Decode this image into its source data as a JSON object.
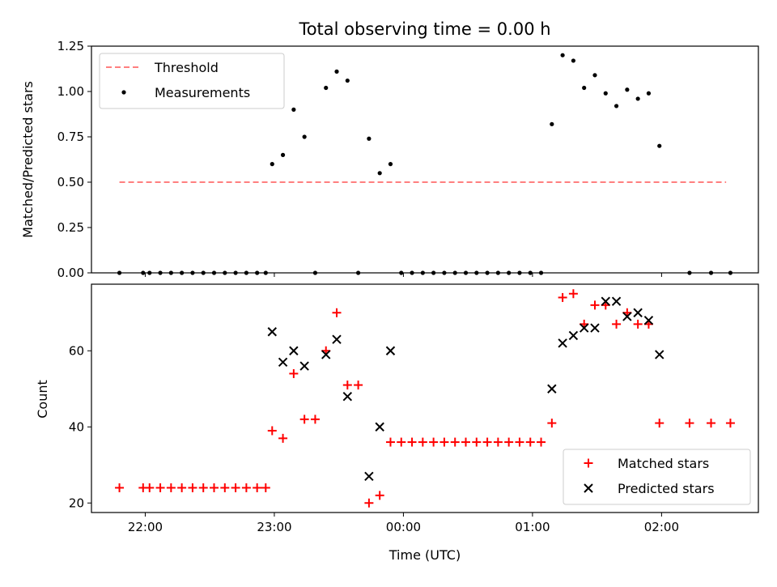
{
  "chart_data": [
    {
      "type": "scatter",
      "title": "Total observing time = 0.00 h",
      "ylabel": "Matched/Predicted stars",
      "xlabel": "",
      "ylim": [
        0,
        1.25
      ],
      "yticks": [
        "0.00",
        "0.25",
        "0.50",
        "0.75",
        "1.00",
        "1.25"
      ],
      "grid": false,
      "legend": "top-left",
      "threshold": {
        "name": "Threshold",
        "value": 0.5,
        "x_start": "21:48",
        "x_end": "02:30",
        "color": "#ff7f7f",
        "style": "dashed"
      },
      "series": [
        {
          "name": "Measurements",
          "color": "#000000",
          "marker": "dot",
          "points": [
            [
              "21:48",
              0.0
            ],
            [
              "21:59",
              0.0
            ],
            [
              "22:02",
              0.0
            ],
            [
              "22:07",
              0.0
            ],
            [
              "22:12",
              0.0
            ],
            [
              "22:17",
              0.0
            ],
            [
              "22:22",
              0.0
            ],
            [
              "22:27",
              0.0
            ],
            [
              "22:32",
              0.0
            ],
            [
              "22:37",
              0.0
            ],
            [
              "22:42",
              0.0
            ],
            [
              "22:47",
              0.0
            ],
            [
              "22:52",
              0.0
            ],
            [
              "22:56",
              0.0
            ],
            [
              "22:59",
              0.6
            ],
            [
              "23:04",
              0.65
            ],
            [
              "23:09",
              0.9
            ],
            [
              "23:14",
              0.75
            ],
            [
              "23:19",
              0.0
            ],
            [
              "23:24",
              1.02
            ],
            [
              "23:29",
              1.11
            ],
            [
              "23:34",
              1.06
            ],
            [
              "23:39",
              0.0
            ],
            [
              "23:44",
              0.74
            ],
            [
              "23:49",
              0.55
            ],
            [
              "23:54",
              0.6
            ],
            [
              "23:59",
              0.0
            ],
            [
              "00:04",
              0.0
            ],
            [
              "00:09",
              0.0
            ],
            [
              "00:14",
              0.0
            ],
            [
              "00:19",
              0.0
            ],
            [
              "00:24",
              0.0
            ],
            [
              "00:29",
              0.0
            ],
            [
              "00:34",
              0.0
            ],
            [
              "00:39",
              0.0
            ],
            [
              "00:44",
              0.0
            ],
            [
              "00:49",
              0.0
            ],
            [
              "00:54",
              0.0
            ],
            [
              "00:59",
              0.0
            ],
            [
              "01:04",
              0.0
            ],
            [
              "01:09",
              0.82
            ],
            [
              "01:14",
              1.2
            ],
            [
              "01:19",
              1.17
            ],
            [
              "01:24",
              1.02
            ],
            [
              "01:29",
              1.09
            ],
            [
              "01:34",
              0.99
            ],
            [
              "01:39",
              0.92
            ],
            [
              "01:44",
              1.01
            ],
            [
              "01:49",
              0.96
            ],
            [
              "01:54",
              0.99
            ],
            [
              "01:59",
              0.7
            ],
            [
              "02:13",
              0.0
            ],
            [
              "02:23",
              0.0
            ],
            [
              "02:32",
              0.0
            ]
          ]
        }
      ]
    },
    {
      "type": "scatter",
      "title": "",
      "xlabel": "Time (UTC)",
      "ylabel": "Count",
      "ylim": [
        17.5,
        77.5
      ],
      "yticks": [
        "20",
        "40",
        "60"
      ],
      "xlim": [
        "21:35",
        "02:45"
      ],
      "xticks": [
        "22:00",
        "23:00",
        "00:00",
        "01:00",
        "02:00"
      ],
      "grid": false,
      "legend": "bottom-right",
      "series": [
        {
          "name": "Matched stars",
          "color": "#ff0000",
          "marker": "plus",
          "points": [
            [
              "21:48",
              24
            ],
            [
              "21:59",
              24
            ],
            [
              "22:02",
              24
            ],
            [
              "22:07",
              24
            ],
            [
              "22:12",
              24
            ],
            [
              "22:17",
              24
            ],
            [
              "22:22",
              24
            ],
            [
              "22:27",
              24
            ],
            [
              "22:32",
              24
            ],
            [
              "22:37",
              24
            ],
            [
              "22:42",
              24
            ],
            [
              "22:47",
              24
            ],
            [
              "22:52",
              24
            ],
            [
              "22:56",
              24
            ],
            [
              "22:59",
              39
            ],
            [
              "23:04",
              37
            ],
            [
              "23:09",
              54
            ],
            [
              "23:14",
              42
            ],
            [
              "23:19",
              42
            ],
            [
              "23:24",
              60
            ],
            [
              "23:29",
              70
            ],
            [
              "23:34",
              51
            ],
            [
              "23:39",
              51
            ],
            [
              "23:44",
              20
            ],
            [
              "23:49",
              22
            ],
            [
              "23:54",
              36
            ],
            [
              "23:59",
              36
            ],
            [
              "00:04",
              36
            ],
            [
              "00:09",
              36
            ],
            [
              "00:14",
              36
            ],
            [
              "00:19",
              36
            ],
            [
              "00:24",
              36
            ],
            [
              "00:29",
              36
            ],
            [
              "00:34",
              36
            ],
            [
              "00:39",
              36
            ],
            [
              "00:44",
              36
            ],
            [
              "00:49",
              36
            ],
            [
              "00:54",
              36
            ],
            [
              "00:59",
              36
            ],
            [
              "01:04",
              36
            ],
            [
              "01:09",
              41
            ],
            [
              "01:14",
              74
            ],
            [
              "01:19",
              75
            ],
            [
              "01:24",
              67
            ],
            [
              "01:29",
              72
            ],
            [
              "01:34",
              72
            ],
            [
              "01:39",
              67
            ],
            [
              "01:44",
              70
            ],
            [
              "01:49",
              67
            ],
            [
              "01:54",
              67
            ],
            [
              "01:59",
              41
            ],
            [
              "02:13",
              41
            ],
            [
              "02:23",
              41
            ],
            [
              "02:32",
              41
            ]
          ]
        },
        {
          "name": "Predicted stars",
          "color": "#000000",
          "marker": "x",
          "points": [
            [
              "22:59",
              65
            ],
            [
              "23:04",
              57
            ],
            [
              "23:09",
              60
            ],
            [
              "23:14",
              56
            ],
            [
              "23:24",
              59
            ],
            [
              "23:29",
              63
            ],
            [
              "23:34",
              48
            ],
            [
              "23:44",
              27
            ],
            [
              "23:49",
              40
            ],
            [
              "23:54",
              60
            ],
            [
              "01:09",
              50
            ],
            [
              "01:14",
              62
            ],
            [
              "01:19",
              64
            ],
            [
              "01:24",
              66
            ],
            [
              "01:29",
              66
            ],
            [
              "01:34",
              73
            ],
            [
              "01:39",
              73
            ],
            [
              "01:44",
              69
            ],
            [
              "01:49",
              70
            ],
            [
              "01:54",
              68
            ],
            [
              "01:59",
              59
            ]
          ]
        }
      ]
    }
  ]
}
